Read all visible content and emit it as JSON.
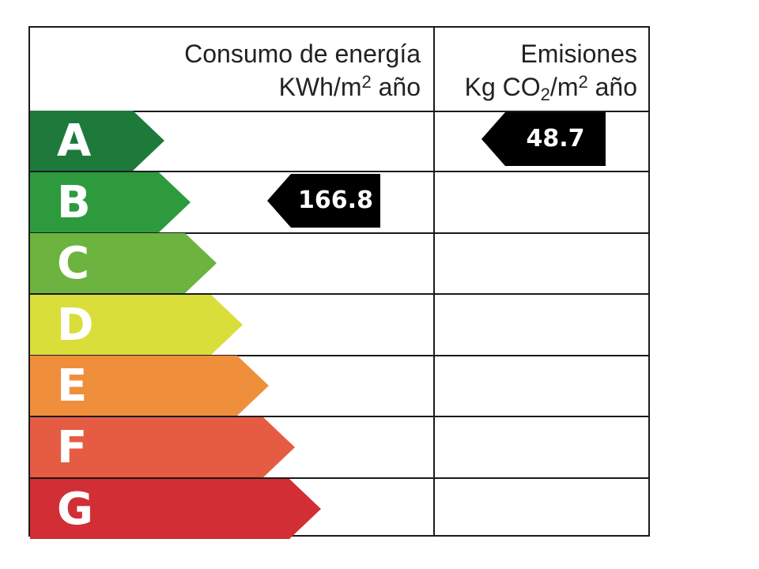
{
  "header": {
    "energy_title": "Consumo de energía",
    "energy_unit_prefix": "KWh/m",
    "energy_unit_sup": "2",
    "energy_unit_suffix": " año",
    "emissions_title": "Emisiones",
    "emissions_unit_prefix": "Kg CO",
    "emissions_unit_sub": "2",
    "emissions_unit_mid": "/m",
    "emissions_unit_sup": "2",
    "emissions_unit_suffix": " año"
  },
  "ratings": [
    {
      "letter": "A",
      "color": "#1e7a3a"
    },
    {
      "letter": "B",
      "color": "#2d9a3e"
    },
    {
      "letter": "C",
      "color": "#6cb33f"
    },
    {
      "letter": "D",
      "color": "#d9de3b"
    },
    {
      "letter": "E",
      "color": "#ef8f3c"
    },
    {
      "letter": "F",
      "color": "#e65c43"
    },
    {
      "letter": "G",
      "color": "#d12f35"
    }
  ],
  "energy_indicator": {
    "rating": "B",
    "value": "166.8",
    "color": "#000000"
  },
  "emissions_indicator": {
    "rating": "A",
    "value": "48.7",
    "color": "#000000"
  }
}
